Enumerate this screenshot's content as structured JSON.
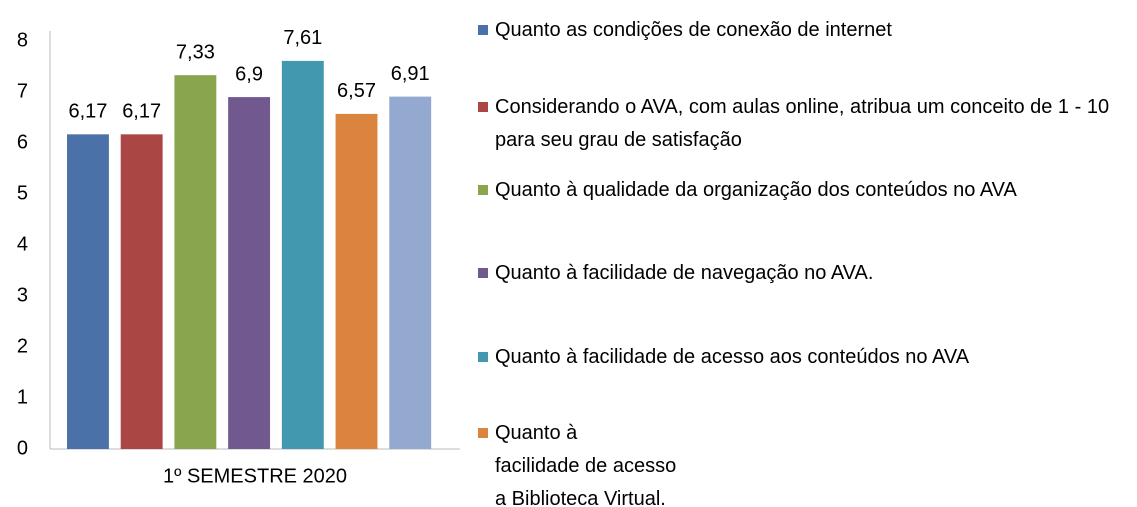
{
  "chart_data": {
    "type": "bar",
    "categories": [
      "1º SEMESTRE 2020"
    ],
    "ylim": [
      0,
      8
    ],
    "yticks": [
      0,
      1,
      2,
      3,
      4,
      5,
      6,
      7,
      8
    ],
    "grid": false,
    "legend": "right",
    "series": [
      {
        "name": "Quanto as condições de conexão de internet",
        "color": "#4a72a8",
        "values": [
          6.17
        ],
        "value_labels": [
          "6,17"
        ]
      },
      {
        "name": "Considerando o AVA, com aulas online, atribua um conceito de 1 - 10 para seu grau de satisfação",
        "color": "#aa4643",
        "values": [
          6.17
        ],
        "value_labels": [
          "6,17"
        ]
      },
      {
        "name": "Quanto à qualidade da organização dos conteúdos no AVA",
        "color": "#89a54e",
        "values": [
          7.33
        ],
        "value_labels": [
          "7,33"
        ]
      },
      {
        "name": "Quanto à facilidade de navegação no AVA.",
        "color": "#71588f",
        "values": [
          6.9
        ],
        "value_labels": [
          "6,9"
        ]
      },
      {
        "name": "Quanto à facilidade de acesso aos conteúdos no AVA",
        "color": "#4198af",
        "values": [
          7.61
        ],
        "value_labels": [
          "7,61"
        ]
      },
      {
        "name": "Quanto à\nfacilidade de acesso\n a Biblioteca Virtual.",
        "color": "#db843d",
        "values": [
          6.57
        ],
        "value_labels": [
          "6,57"
        ]
      },
      {
        "color": "#93a9cf",
        "values": [
          6.91
        ],
        "value_labels": [
          "6,91"
        ]
      }
    ]
  }
}
